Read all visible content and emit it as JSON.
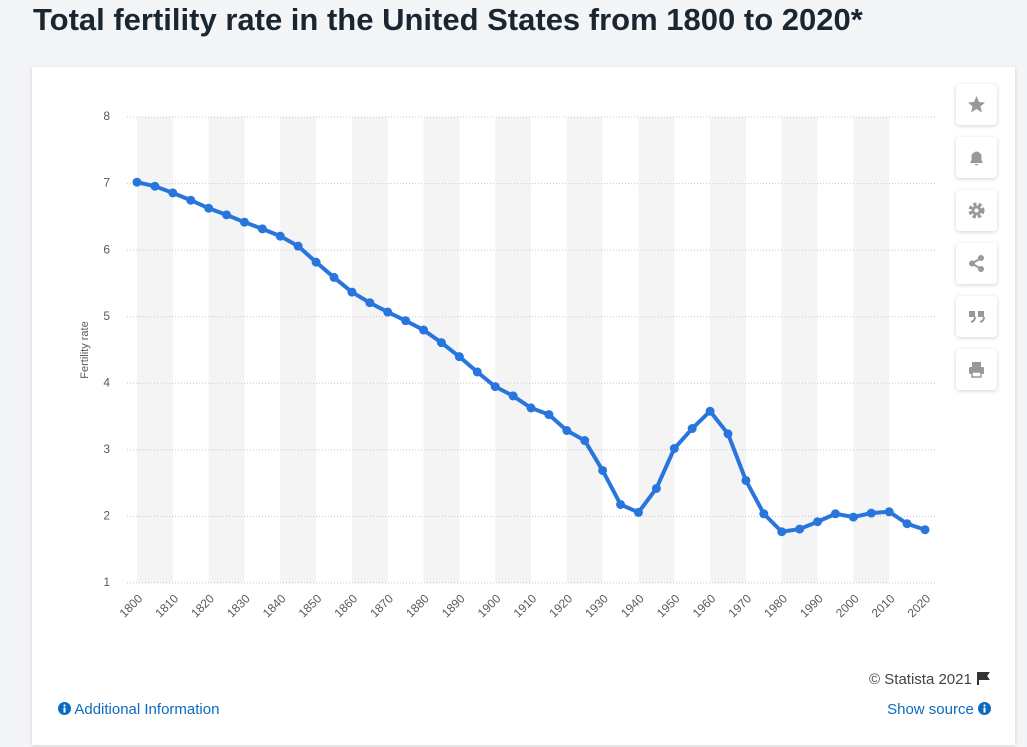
{
  "chart_data": {
    "type": "line",
    "title": "Total fertility rate in the United States from 1800 to 2020*",
    "y_label": "Fertility rate",
    "x": [
      1800,
      1805,
      1810,
      1815,
      1820,
      1825,
      1830,
      1835,
      1840,
      1845,
      1850,
      1855,
      1860,
      1865,
      1870,
      1875,
      1880,
      1885,
      1890,
      1895,
      1900,
      1905,
      1910,
      1915,
      1920,
      1925,
      1930,
      1935,
      1940,
      1945,
      1950,
      1955,
      1960,
      1965,
      1970,
      1975,
      1980,
      1985,
      1990,
      1995,
      2000,
      2005,
      2010,
      2015,
      2020
    ],
    "series": [
      {
        "name": "Fertility rate",
        "color": "#2876dd",
        "values": [
          7.02,
          6.96,
          6.86,
          6.75,
          6.63,
          6.53,
          6.42,
          6.32,
          6.21,
          6.06,
          5.82,
          5.59,
          5.37,
          5.21,
          5.07,
          4.94,
          4.8,
          4.61,
          4.4,
          4.17,
          3.95,
          3.81,
          3.63,
          3.53,
          3.29,
          3.14,
          2.69,
          2.18,
          2.06,
          2.42,
          3.02,
          3.32,
          3.58,
          3.24,
          2.54,
          2.04,
          1.77,
          1.81,
          1.92,
          2.04,
          1.99,
          2.05,
          2.07,
          1.89,
          1.8
        ]
      }
    ],
    "xlim": [
      1800,
      2020
    ],
    "xticks": [
      1800,
      1810,
      1820,
      1830,
      1840,
      1850,
      1860,
      1870,
      1880,
      1890,
      1900,
      1910,
      1920,
      1930,
      1940,
      1950,
      1960,
      1970,
      1980,
      1990,
      2000,
      2010,
      2020
    ],
    "ylim": [
      1,
      8
    ],
    "yticks": [
      1,
      2,
      3,
      4,
      5,
      6,
      7,
      8
    ],
    "grid": true
  },
  "footer": {
    "copyright": "© Statista 2021",
    "additional_info": "Additional Information",
    "show_source": "Show source"
  }
}
